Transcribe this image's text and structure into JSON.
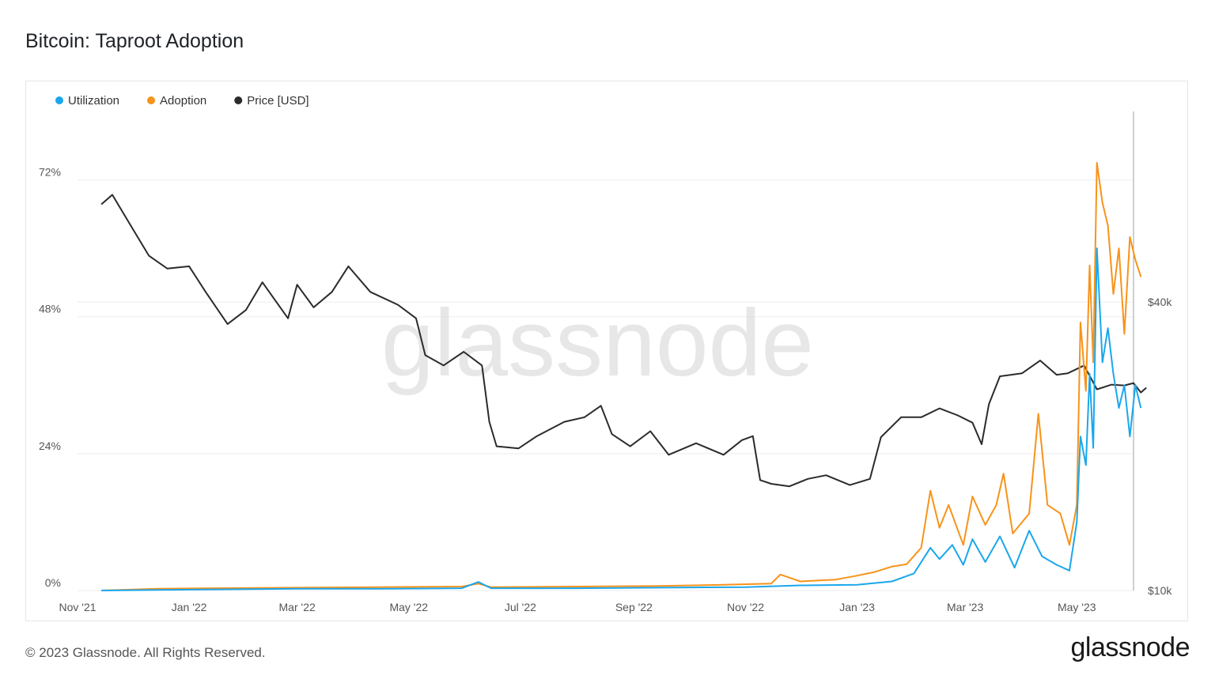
{
  "header": {
    "title": "Bitcoin: Taproot Adoption"
  },
  "footer": {
    "copyright": "© 2023 Glassnode. All Rights Reserved.",
    "logo": "glassnode"
  },
  "watermark": "glassnode",
  "colors": {
    "utilization": "#1aa7ec",
    "adoption": "#f7931a",
    "price": "#2b2b2b",
    "grid": "#eceef1"
  },
  "chart_data": {
    "type": "line",
    "legend_position": "top-left",
    "grid": true,
    "x_ticks": [
      "Nov '21",
      "Jan '22",
      "Mar '22",
      "May '22",
      "Jul '22",
      "Sep '22",
      "Nov '22",
      "Jan '23",
      "Mar '23",
      "May '23"
    ],
    "x_range": [
      "2021-11-01",
      "2023-06-01"
    ],
    "y_left": {
      "ticks": [
        "0%",
        "24%",
        "48%",
        "72%"
      ],
      "range": [
        0,
        84
      ]
    },
    "y_right": {
      "ticks": [
        "$10k",
        "$40k"
      ],
      "scale": "log",
      "range": [
        10000,
        100000
      ]
    },
    "series": [
      {
        "name": "Utilization",
        "axis": "left",
        "points": [
          [
            "2021-11-14",
            0.0
          ],
          [
            "2021-12-15",
            0.1
          ],
          [
            "2022-01-15",
            0.2
          ],
          [
            "2022-03-01",
            0.3
          ],
          [
            "2022-04-15",
            0.3
          ],
          [
            "2022-05-30",
            0.4
          ],
          [
            "2022-06-08",
            1.5
          ],
          [
            "2022-06-15",
            0.4
          ],
          [
            "2022-08-01",
            0.4
          ],
          [
            "2022-09-15",
            0.5
          ],
          [
            "2022-11-01",
            0.6
          ],
          [
            "2022-12-01",
            0.9
          ],
          [
            "2023-01-01",
            1.0
          ],
          [
            "2023-01-20",
            1.6
          ],
          [
            "2023-02-01",
            3.0
          ],
          [
            "2023-02-10",
            7.5
          ],
          [
            "2023-02-15",
            5.5
          ],
          [
            "2023-02-22",
            8.0
          ],
          [
            "2023-02-28",
            4.5
          ],
          [
            "2023-03-05",
            9.0
          ],
          [
            "2023-03-12",
            5.0
          ],
          [
            "2023-03-20",
            9.5
          ],
          [
            "2023-03-28",
            4.0
          ],
          [
            "2023-04-05",
            10.5
          ],
          [
            "2023-04-12",
            6.0
          ],
          [
            "2023-04-20",
            4.5
          ],
          [
            "2023-04-27",
            3.5
          ],
          [
            "2023-05-01",
            12.0
          ],
          [
            "2023-05-03",
            27.0
          ],
          [
            "2023-05-06",
            22.0
          ],
          [
            "2023-05-08",
            38.0
          ],
          [
            "2023-05-10",
            25.0
          ],
          [
            "2023-05-12",
            60.0
          ],
          [
            "2023-05-15",
            40.0
          ],
          [
            "2023-05-18",
            46.0
          ],
          [
            "2023-05-21",
            38.0
          ],
          [
            "2023-05-24",
            32.0
          ],
          [
            "2023-05-27",
            36.0
          ],
          [
            "2023-05-30",
            27.0
          ],
          [
            "2023-06-02",
            36.0
          ],
          [
            "2023-06-05",
            32.0
          ]
        ]
      },
      {
        "name": "Adoption",
        "axis": "left",
        "points": [
          [
            "2021-11-14",
            0.0
          ],
          [
            "2021-12-15",
            0.3
          ],
          [
            "2022-01-15",
            0.4
          ],
          [
            "2022-03-01",
            0.5
          ],
          [
            "2022-04-15",
            0.6
          ],
          [
            "2022-05-30",
            0.7
          ],
          [
            "2022-06-08",
            1.2
          ],
          [
            "2022-06-15",
            0.6
          ],
          [
            "2022-08-01",
            0.7
          ],
          [
            "2022-09-15",
            0.8
          ],
          [
            "2022-10-20",
            1.0
          ],
          [
            "2022-11-15",
            1.2
          ],
          [
            "2022-11-20",
            2.8
          ],
          [
            "2022-12-01",
            1.6
          ],
          [
            "2022-12-20",
            1.9
          ],
          [
            "2023-01-01",
            2.6
          ],
          [
            "2023-01-10",
            3.2
          ],
          [
            "2023-01-20",
            4.2
          ],
          [
            "2023-01-28",
            4.6
          ],
          [
            "2023-02-05",
            7.5
          ],
          [
            "2023-02-10",
            17.5
          ],
          [
            "2023-02-15",
            11.0
          ],
          [
            "2023-02-20",
            15.0
          ],
          [
            "2023-02-28",
            8.0
          ],
          [
            "2023-03-05",
            16.5
          ],
          [
            "2023-03-12",
            11.5
          ],
          [
            "2023-03-18",
            15.0
          ],
          [
            "2023-03-22",
            20.5
          ],
          [
            "2023-03-27",
            10.0
          ],
          [
            "2023-04-05",
            13.5
          ],
          [
            "2023-04-10",
            31.0
          ],
          [
            "2023-04-15",
            15.0
          ],
          [
            "2023-04-22",
            13.5
          ],
          [
            "2023-04-27",
            8.0
          ],
          [
            "2023-05-01",
            15.0
          ],
          [
            "2023-05-03",
            47.0
          ],
          [
            "2023-05-06",
            35.0
          ],
          [
            "2023-05-08",
            57.0
          ],
          [
            "2023-05-10",
            40.0
          ],
          [
            "2023-05-12",
            75.0
          ],
          [
            "2023-05-15",
            68.0
          ],
          [
            "2023-05-18",
            64.0
          ],
          [
            "2023-05-21",
            52.0
          ],
          [
            "2023-05-24",
            60.0
          ],
          [
            "2023-05-27",
            45.0
          ],
          [
            "2023-05-30",
            62.0
          ],
          [
            "2023-06-02",
            58.0
          ],
          [
            "2023-06-05",
            55.0
          ]
        ]
      },
      {
        "name": "Price [USD]",
        "axis": "right",
        "points": [
          [
            "2021-11-14",
            64000
          ],
          [
            "2021-11-20",
            67000
          ],
          [
            "2021-12-01",
            57000
          ],
          [
            "2021-12-10",
            50000
          ],
          [
            "2021-12-20",
            47000
          ],
          [
            "2022-01-01",
            47500
          ],
          [
            "2022-01-10",
            42000
          ],
          [
            "2022-01-22",
            36000
          ],
          [
            "2022-02-01",
            38500
          ],
          [
            "2022-02-10",
            44000
          ],
          [
            "2022-02-24",
            37000
          ],
          [
            "2022-03-01",
            43500
          ],
          [
            "2022-03-10",
            39000
          ],
          [
            "2022-03-20",
            42000
          ],
          [
            "2022-03-29",
            47500
          ],
          [
            "2022-04-10",
            42000
          ],
          [
            "2022-04-25",
            39500
          ],
          [
            "2022-05-05",
            37000
          ],
          [
            "2022-05-10",
            31000
          ],
          [
            "2022-05-20",
            29500
          ],
          [
            "2022-05-31",
            31500
          ],
          [
            "2022-06-10",
            29500
          ],
          [
            "2022-06-14",
            22500
          ],
          [
            "2022-06-18",
            20000
          ],
          [
            "2022-06-30",
            19800
          ],
          [
            "2022-07-10",
            21000
          ],
          [
            "2022-07-25",
            22500
          ],
          [
            "2022-08-05",
            23000
          ],
          [
            "2022-08-14",
            24300
          ],
          [
            "2022-08-20",
            21200
          ],
          [
            "2022-08-30",
            20000
          ],
          [
            "2022-09-10",
            21500
          ],
          [
            "2022-09-20",
            19200
          ],
          [
            "2022-10-05",
            20300
          ],
          [
            "2022-10-20",
            19200
          ],
          [
            "2022-10-30",
            20600
          ],
          [
            "2022-11-05",
            21000
          ],
          [
            "2022-11-09",
            17000
          ],
          [
            "2022-11-15",
            16700
          ],
          [
            "2022-11-25",
            16500
          ],
          [
            "2022-12-05",
            17100
          ],
          [
            "2022-12-15",
            17400
          ],
          [
            "2022-12-28",
            16600
          ],
          [
            "2023-01-08",
            17100
          ],
          [
            "2023-01-14",
            20900
          ],
          [
            "2023-01-25",
            23000
          ],
          [
            "2023-02-05",
            23000
          ],
          [
            "2023-02-15",
            24000
          ],
          [
            "2023-02-25",
            23200
          ],
          [
            "2023-03-05",
            22400
          ],
          [
            "2023-03-10",
            20200
          ],
          [
            "2023-03-14",
            24500
          ],
          [
            "2023-03-20",
            28000
          ],
          [
            "2023-04-01",
            28400
          ],
          [
            "2023-04-11",
            30200
          ],
          [
            "2023-04-20",
            28200
          ],
          [
            "2023-04-26",
            28400
          ],
          [
            "2023-05-05",
            29500
          ],
          [
            "2023-05-12",
            26300
          ],
          [
            "2023-05-20",
            26900
          ],
          [
            "2023-05-27",
            26800
          ],
          [
            "2023-06-01",
            27100
          ],
          [
            "2023-06-05",
            25900
          ],
          [
            "2023-06-08",
            26500
          ]
        ]
      }
    ]
  }
}
